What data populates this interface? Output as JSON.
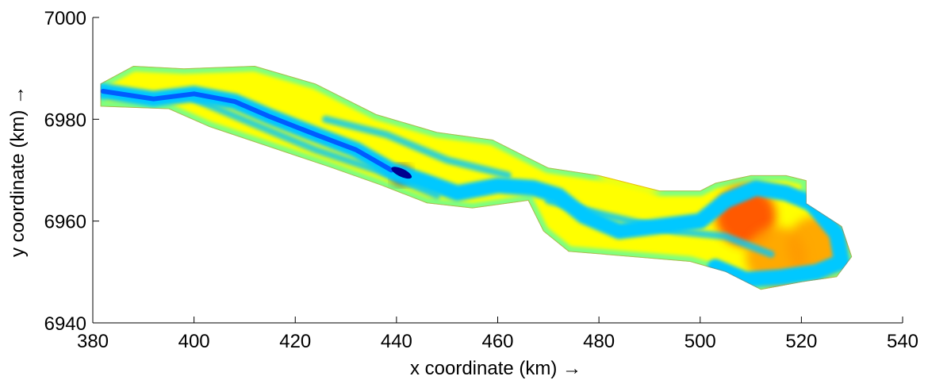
{
  "chart_data": {
    "type": "heatmap",
    "title": "",
    "xlabel": "x coordinate (km) →",
    "ylabel": "y coordinate (km) →",
    "xlim": [
      380,
      540
    ],
    "ylim": [
      6940,
      7000
    ],
    "x_ticks": [
      380,
      400,
      420,
      440,
      460,
      480,
      500,
      520,
      540
    ],
    "y_ticks": [
      6940,
      6960,
      6980,
      7000
    ],
    "x_tick_labels": [
      "380",
      "400",
      "420",
      "440",
      "460",
      "480",
      "500",
      "520",
      "540"
    ],
    "y_tick_labels": [
      "6940",
      "6960",
      "6980",
      "7000"
    ],
    "grid": false,
    "legend": "none",
    "colormap": [
      "#00008f",
      "#0050ff",
      "#00c8ff",
      "#7fff7f",
      "#ffff00",
      "#ff9a00",
      "#ff3c00",
      "#b00000"
    ],
    "river_outline": [
      [
        381.5,
        6987
      ],
      [
        388,
        6990.5
      ],
      [
        398,
        6990
      ],
      [
        412,
        6990.5
      ],
      [
        424,
        6987
      ],
      [
        436,
        6981
      ],
      [
        448,
        6977.5
      ],
      [
        459,
        6976
      ],
      [
        466,
        6972.5
      ],
      [
        470,
        6970.5
      ],
      [
        480,
        6969
      ],
      [
        492,
        6966
      ],
      [
        500,
        6966
      ],
      [
        503,
        6967.5
      ],
      [
        510,
        6969
      ],
      [
        517,
        6969
      ],
      [
        521,
        6968
      ],
      [
        521,
        6963.5
      ],
      [
        528,
        6959
      ],
      [
        530,
        6953
      ],
      [
        527,
        6949
      ],
      [
        520,
        6948
      ],
      [
        512,
        6946.5
      ],
      [
        505,
        6950
      ],
      [
        498,
        6952
      ],
      [
        486,
        6953
      ],
      [
        474,
        6954
      ],
      [
        469,
        6958
      ],
      [
        466,
        6964
      ],
      [
        455,
        6962.5
      ],
      [
        446,
        6963.5
      ],
      [
        437,
        6967
      ],
      [
        427,
        6970.5
      ],
      [
        415,
        6974.5
      ],
      [
        403,
        6978.5
      ],
      [
        395,
        6982
      ],
      [
        381.5,
        6982.5
      ]
    ],
    "channel": [
      [
        382,
        6985.5
      ],
      [
        392,
        6984
      ],
      [
        400,
        6985
      ],
      [
        408,
        6983.5
      ],
      [
        415,
        6980.5
      ],
      [
        424,
        6977
      ],
      [
        432,
        6974
      ],
      [
        439,
        6970
      ],
      [
        445,
        6968
      ],
      [
        452,
        6965.5
      ],
      [
        460,
        6967
      ],
      [
        467,
        6966.5
      ],
      [
        472,
        6965
      ],
      [
        477,
        6961
      ],
      [
        484,
        6958
      ],
      [
        492,
        6959
      ],
      [
        500,
        6960
      ],
      [
        505,
        6964
      ],
      [
        511,
        6966.5
      ],
      [
        517,
        6965.5
      ],
      [
        522,
        6963.5
      ],
      [
        527,
        6957.5
      ],
      [
        528,
        6952
      ],
      [
        523,
        6950
      ],
      [
        516,
        6949
      ],
      [
        509,
        6948.5
      ],
      [
        503,
        6951
      ]
    ],
    "secondary_channels": [
      [
        [
          400,
          6984
        ],
        [
          412,
          6979
        ],
        [
          424,
          6974
        ],
        [
          436,
          6970
        ],
        [
          448,
          6965
        ]
      ],
      [
        [
          470,
          6964
        ],
        [
          482,
          6961
        ],
        [
          495,
          6958
        ],
        [
          505,
          6957
        ],
        [
          514,
          6953.5
        ]
      ],
      [
        [
          426,
          6980
        ],
        [
          438,
          6977
        ],
        [
          450,
          6972
        ],
        [
          462,
          6969
        ]
      ]
    ],
    "hotspots": [
      {
        "x": 509,
        "y": 6961,
        "value": 0.85
      },
      {
        "x": 523,
        "y": 6955,
        "value": 0.75
      },
      {
        "x": 515,
        "y": 6953,
        "value": 0.68
      },
      {
        "x": 486,
        "y": 6968,
        "value": 0.62
      },
      {
        "x": 441,
        "y": 6969,
        "value": 0.05
      }
    ]
  }
}
